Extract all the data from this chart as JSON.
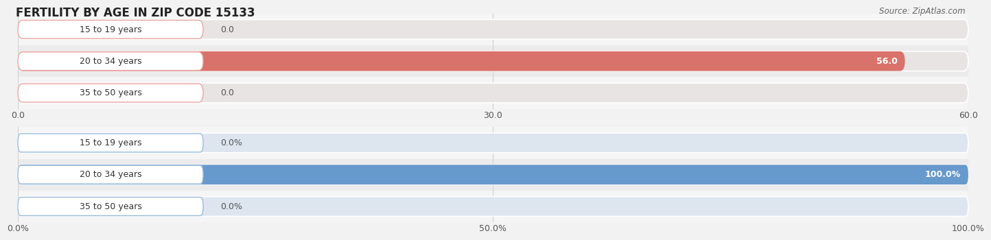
{
  "title": "FERTILITY BY AGE IN ZIP CODE 15133",
  "source": "Source: ZipAtlas.com",
  "top_chart": {
    "categories": [
      "15 to 19 years",
      "20 to 34 years",
      "35 to 50 years"
    ],
    "values": [
      0.0,
      56.0,
      0.0
    ],
    "max_value": 60.0,
    "tick_values": [
      0.0,
      30.0,
      60.0
    ],
    "tick_labels": [
      "0.0",
      "30.0",
      "60.0"
    ],
    "bar_color": "#d9726b",
    "bar_color_light": "#e8a5a0",
    "bar_bg_color": "#e8e4e4"
  },
  "bottom_chart": {
    "categories": [
      "15 to 19 years",
      "20 to 34 years",
      "35 to 50 years"
    ],
    "values": [
      0.0,
      100.0,
      0.0
    ],
    "max_value": 100.0,
    "tick_values": [
      0.0,
      50.0,
      100.0
    ],
    "tick_labels": [
      "0.0%",
      "50.0%",
      "100.0%"
    ],
    "bar_color": "#6699cc",
    "bar_color_light": "#99bbdd",
    "bar_bg_color": "#dde6ef"
  },
  "bg_color": "#f2f2f2",
  "row_bg_even": "#ebebeb",
  "row_bg_odd": "#f5f5f5",
  "grid_color": "#d0d0d0",
  "title_fontsize": 12,
  "label_fontsize": 9,
  "tick_fontsize": 9,
  "source_fontsize": 8.5
}
